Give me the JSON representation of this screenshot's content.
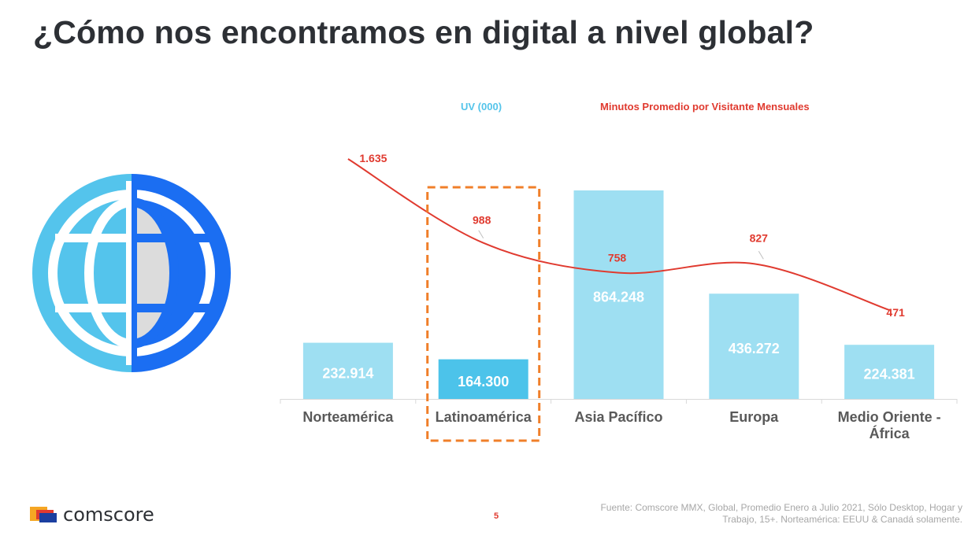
{
  "title": "¿Cómo nos encontramos en digital a nivel global?",
  "legend": {
    "uv": "UV (000)",
    "minutes": "Minutos Promedio por Visitante Mensuales"
  },
  "chart_data": {
    "type": "bar",
    "categories": [
      "Norteamérica",
      "Latinoamérica",
      "Asia Pacífico",
      "Europa",
      "Medio Oriente - África"
    ],
    "series": [
      {
        "name": "UV (000)",
        "type": "bar",
        "values": [
          232914,
          164300,
          864248,
          436272,
          224381
        ],
        "labels": [
          "232.914",
          "164.300",
          "864.248",
          "436.272",
          "224.381"
        ]
      },
      {
        "name": "Minutos Promedio por Visitante Mensuales",
        "type": "line",
        "values": [
          1635,
          988,
          758,
          827,
          471
        ],
        "labels": [
          "1.635",
          "988",
          "758",
          "827",
          "471"
        ]
      }
    ],
    "highlight_category": "Latinoamérica",
    "colors": {
      "bar": "#9edff2",
      "bar_highlight": "#4cc3ea",
      "line": "#e03a2f",
      "highlight_box": "#f07f2a"
    }
  },
  "brand": "comscore",
  "page_number": "5",
  "source": "Fuente: Comscore MMX, Global, Promedio Enero a Julio 2021, Sólo Desktop, Hogar y Trabajo, 15+. Norteamérica: EEUU & Canadá solamente."
}
